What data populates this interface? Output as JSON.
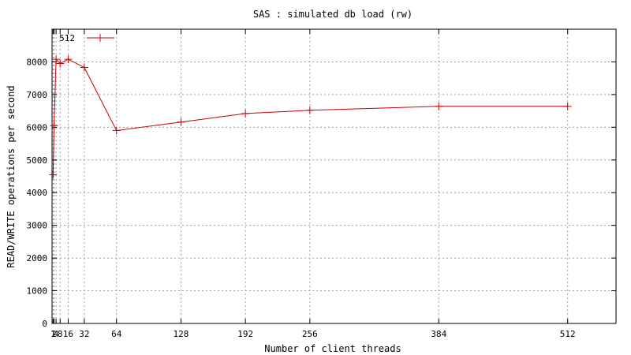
{
  "chart_data": {
    "type": "line",
    "title": "SAS : simulated db load (rw)",
    "xlabel": "Number of client threads",
    "ylabel": "READ/WRITE operations per second",
    "xlim": [
      0,
      560
    ],
    "ylim": [
      0,
      9000
    ],
    "x_ticks": [
      1,
      2,
      4,
      8,
      16,
      32,
      64,
      128,
      192,
      256,
      384,
      512
    ],
    "x_tick_labels": [
      "1",
      "2",
      "4",
      "8",
      "16",
      "32",
      "64",
      "128",
      "192",
      "256",
      "384",
      "512"
    ],
    "y_ticks": [
      0,
      1000,
      2000,
      3000,
      4000,
      5000,
      6000,
      7000,
      8000
    ],
    "y_tick_labels": [
      "0",
      "1000",
      "2000",
      "3000",
      "4000",
      "5000",
      "6000",
      "7000",
      "8000"
    ],
    "grid": true,
    "legend_position": "top-left",
    "series": [
      {
        "name": "512",
        "color": "#cc0000",
        "marker": "plus",
        "x": [
          1,
          2,
          4,
          8,
          16,
          32,
          64,
          128,
          192,
          256,
          384,
          512
        ],
        "y": [
          4550,
          6050,
          8080,
          7950,
          8080,
          7830,
          5900,
          6160,
          6420,
          6520,
          6640,
          6640
        ]
      }
    ]
  }
}
